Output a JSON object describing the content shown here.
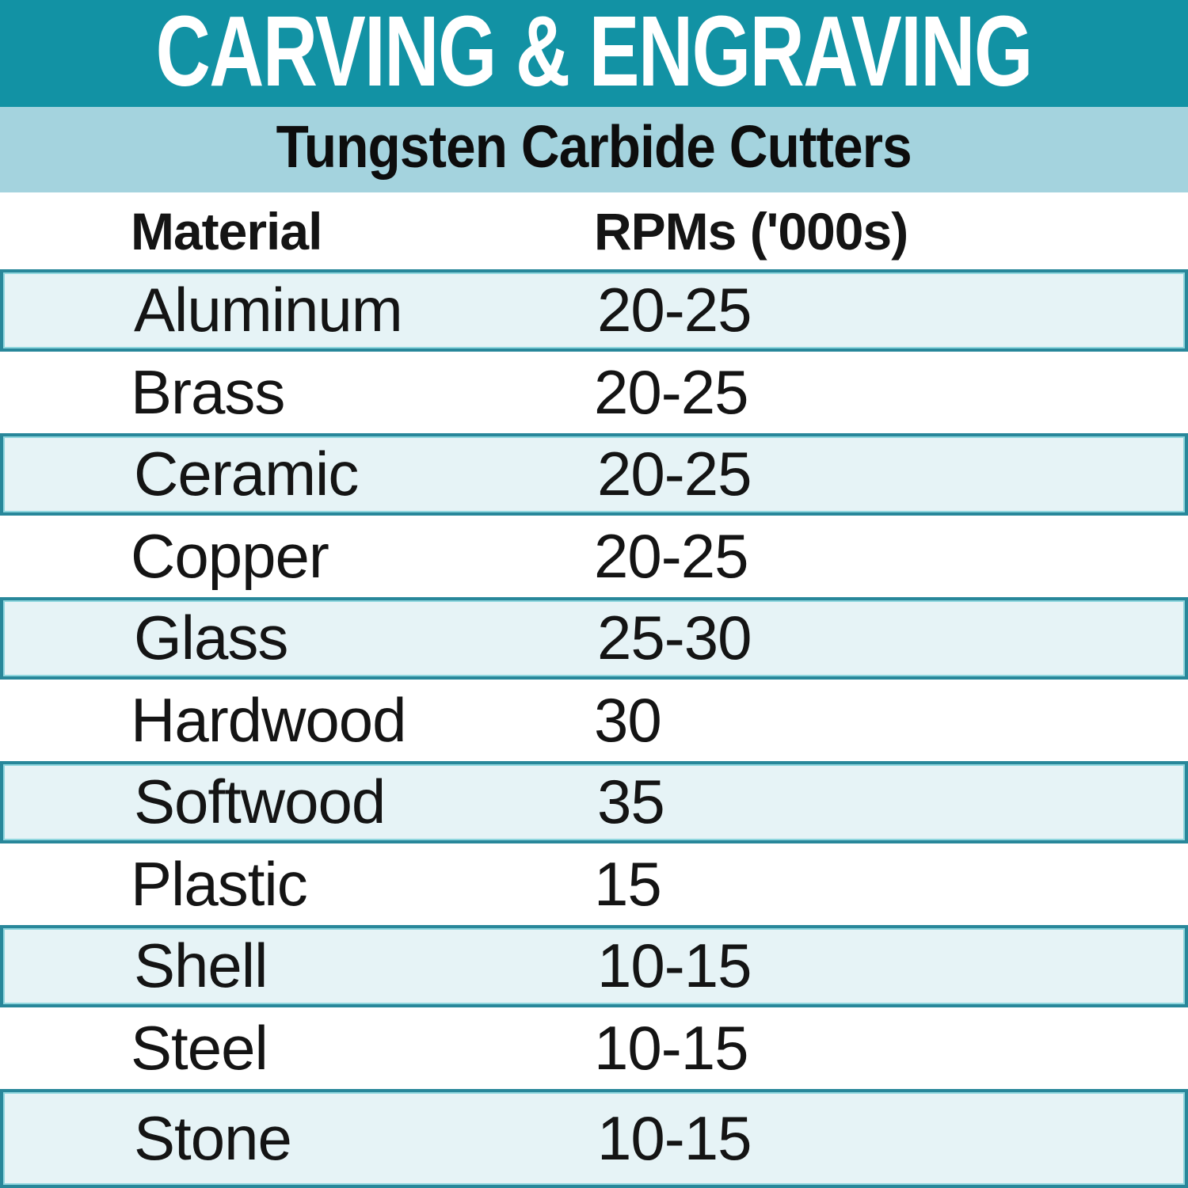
{
  "title": "CARVING & ENGRAVING",
  "subtitle": "Tungsten Carbide Cutters",
  "colors": {
    "title_band_bg": "#1292a4",
    "title_text": "#ffffff",
    "subtitle_band_bg": "#a4d3de",
    "row_tint_bg": "#e6f3f6",
    "row_border": "#28879a",
    "row_border_inner": "#8fd6de",
    "text": "#141414"
  },
  "chart_data": {
    "type": "table",
    "title": "CARVING & ENGRAVING",
    "subtitle": "Tungsten Carbide Cutters",
    "columns": [
      "Material",
      "RPMs ('000s)"
    ],
    "rows": [
      [
        "Aluminum",
        "20-25"
      ],
      [
        "Brass",
        "20-25"
      ],
      [
        "Ceramic",
        "20-25"
      ],
      [
        "Copper",
        "20-25"
      ],
      [
        "Glass",
        "25-30"
      ],
      [
        "Hardwood",
        "30"
      ],
      [
        "Softwood",
        "35"
      ],
      [
        "Plastic",
        "15"
      ],
      [
        "Shell",
        "10-15"
      ],
      [
        "Steel",
        "10-15"
      ],
      [
        "Stone",
        "10-15"
      ]
    ],
    "layout": {
      "striped_rows": "odd rows tinted with teal outline",
      "legend_position": "none",
      "grid": "horizontal teal separators only"
    }
  }
}
